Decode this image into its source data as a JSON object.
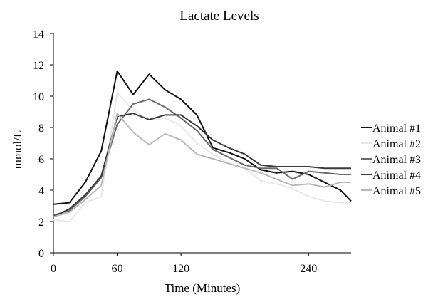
{
  "chart_data": {
    "type": "line",
    "title": "Lactate Levels",
    "xlabel": "Time (Minutes)",
    "ylabel": "mmol/L",
    "xlim": [
      0,
      280
    ],
    "ylim": [
      0,
      14
    ],
    "xticks": [
      0,
      60,
      120,
      240
    ],
    "yticks": [
      0,
      2,
      4,
      6,
      8,
      10,
      12,
      14
    ],
    "grid": false,
    "legend_position": "right",
    "x": [
      0,
      15,
      30,
      45,
      60,
      75,
      90,
      105,
      120,
      135,
      150,
      165,
      180,
      195,
      210,
      225,
      240,
      255,
      270,
      280
    ],
    "series": [
      {
        "name": "Animal #1",
        "color": "#111111",
        "values": [
          3.1,
          3.2,
          4.5,
          6.5,
          11.6,
          10.1,
          11.4,
          10.4,
          9.8,
          8.8,
          6.7,
          6.4,
          6.0,
          5.3,
          5.1,
          5.2,
          5.0,
          4.5,
          4.0,
          3.3
        ]
      },
      {
        "name": "Animal #2",
        "color": "#e8e8e8",
        "values": [
          2.1,
          2.0,
          3.2,
          3.6,
          10.2,
          9.1,
          8.5,
          8.6,
          8.1,
          7.0,
          6.3,
          5.7,
          5.4,
          4.6,
          4.4,
          4.1,
          3.6,
          3.3,
          3.2,
          3.2
        ]
      },
      {
        "name": "Animal #3",
        "color": "#6b6b6b",
        "values": [
          2.4,
          2.7,
          3.6,
          4.8,
          8.2,
          9.5,
          9.8,
          9.3,
          8.6,
          7.8,
          6.6,
          6.1,
          5.6,
          5.4,
          5.4,
          4.7,
          5.2,
          5.1,
          5.0,
          5.0
        ]
      },
      {
        "name": "Animal #4",
        "color": "#3a3a3a",
        "values": [
          2.3,
          2.8,
          3.7,
          4.9,
          8.7,
          8.9,
          8.5,
          8.8,
          8.8,
          8.1,
          7.2,
          6.7,
          6.3,
          5.6,
          5.5,
          5.5,
          5.5,
          5.4,
          5.4,
          5.4
        ]
      },
      {
        "name": "Animal #5",
        "color": "#b9b9b9",
        "values": [
          2.3,
          2.6,
          3.4,
          4.3,
          8.9,
          7.7,
          6.9,
          7.6,
          7.2,
          6.3,
          6.0,
          5.7,
          5.4,
          5.1,
          4.7,
          4.3,
          4.4,
          4.2,
          4.5,
          4.5
        ]
      }
    ]
  }
}
